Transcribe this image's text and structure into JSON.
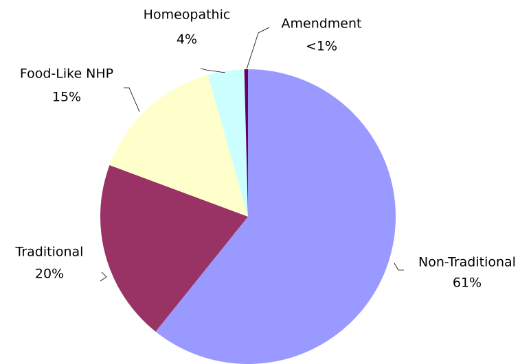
{
  "chart_data": {
    "type": "pie",
    "categories": [
      "Non-Traditional",
      "Traditional",
      "Food-Like NHP",
      "Homeopathic",
      "Amendment"
    ],
    "values": [
      61,
      20,
      15,
      4,
      0.4
    ],
    "value_labels": [
      "61%",
      "20%",
      "15%",
      "4%",
      "<1%"
    ],
    "colors": [
      "#9999ff",
      "#993366",
      "#ffffcc",
      "#ccffff",
      "#660066"
    ]
  }
}
